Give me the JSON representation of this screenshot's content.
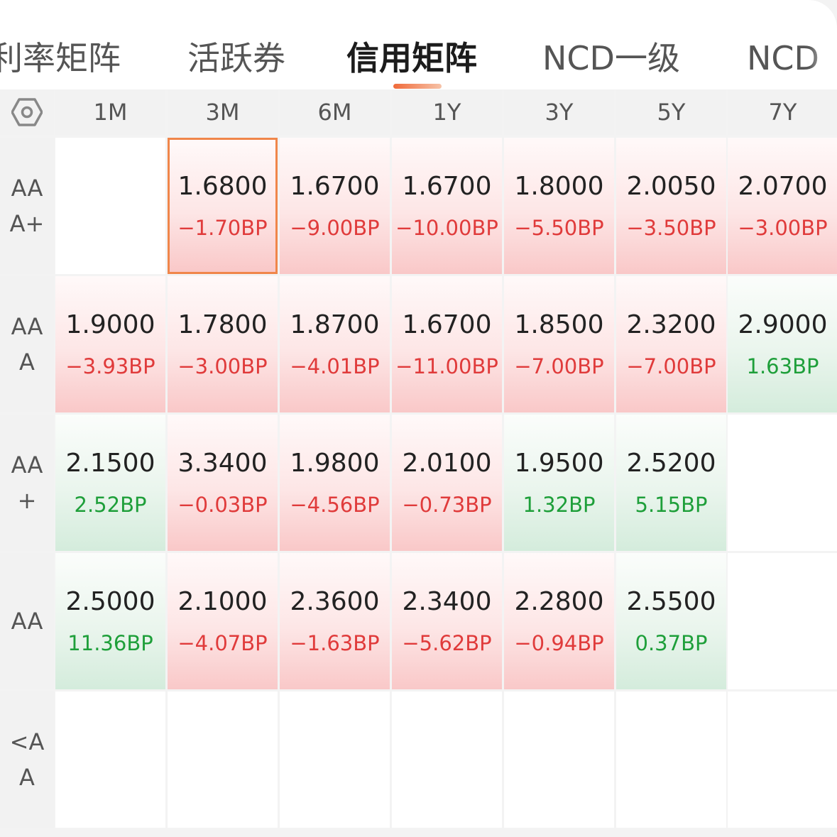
{
  "tabs": [
    {
      "label": "利率矩阵",
      "active": false
    },
    {
      "label": "活跃券",
      "active": false
    },
    {
      "label": "信用矩阵",
      "active": true
    },
    {
      "label": "NCD一级",
      "active": false
    },
    {
      "label": "NCD",
      "active": false
    }
  ],
  "columns": [
    "1M",
    "3M",
    "6M",
    "1Y",
    "3Y",
    "5Y",
    "7Y"
  ],
  "settings_icon": "settings-hex-icon",
  "colors": {
    "negative": "#e03b3b",
    "positive": "#1e9f3a",
    "selected_border": "#f0864a",
    "accent": "#f06a3a"
  },
  "rows": [
    {
      "label_lines": [
        "AA",
        "A+"
      ],
      "cells": [
        null,
        {
          "value": "1.6800",
          "change": "−1.70BP",
          "trend": "red",
          "selected": true
        },
        {
          "value": "1.6700",
          "change": "−9.00BP",
          "trend": "red"
        },
        {
          "value": "1.6700",
          "change": "−10.00BP",
          "trend": "red"
        },
        {
          "value": "1.8000",
          "change": "−5.50BP",
          "trend": "red"
        },
        {
          "value": "2.0050",
          "change": "−3.50BP",
          "trend": "red"
        },
        {
          "value": "2.0700",
          "change": "−3.00BP",
          "trend": "red"
        }
      ]
    },
    {
      "label_lines": [
        "AA",
        "A"
      ],
      "cells": [
        {
          "value": "1.9000",
          "change": "−3.93BP",
          "trend": "red"
        },
        {
          "value": "1.7800",
          "change": "−3.00BP",
          "trend": "red"
        },
        {
          "value": "1.8700",
          "change": "−4.01BP",
          "trend": "red"
        },
        {
          "value": "1.6700",
          "change": "−11.00BP",
          "trend": "red"
        },
        {
          "value": "1.8500",
          "change": "−7.00BP",
          "trend": "red"
        },
        {
          "value": "2.3200",
          "change": "−7.00BP",
          "trend": "red"
        },
        {
          "value": "2.9000",
          "change": "1.63BP",
          "trend": "green"
        }
      ]
    },
    {
      "label_lines": [
        "AA",
        "+"
      ],
      "cells": [
        {
          "value": "2.1500",
          "change": "2.52BP",
          "trend": "green"
        },
        {
          "value": "3.3400",
          "change": "−0.03BP",
          "trend": "red"
        },
        {
          "value": "1.9800",
          "change": "−4.56BP",
          "trend": "red"
        },
        {
          "value": "2.0100",
          "change": "−0.73BP",
          "trend": "red"
        },
        {
          "value": "1.9500",
          "change": "1.32BP",
          "trend": "green"
        },
        {
          "value": "2.5200",
          "change": "5.15BP",
          "trend": "green"
        },
        null
      ]
    },
    {
      "label_lines": [
        "AA"
      ],
      "cells": [
        {
          "value": "2.5000",
          "change": "11.36BP",
          "trend": "green"
        },
        {
          "value": "2.1000",
          "change": "−4.07BP",
          "trend": "red"
        },
        {
          "value": "2.3600",
          "change": "−1.63BP",
          "trend": "red"
        },
        {
          "value": "2.3400",
          "change": "−5.62BP",
          "trend": "red"
        },
        {
          "value": "2.2800",
          "change": "−0.94BP",
          "trend": "red"
        },
        {
          "value": "2.5500",
          "change": "0.37BP",
          "trend": "green"
        },
        null
      ]
    },
    {
      "label_lines": [
        "<A",
        "A"
      ],
      "cells": [
        null,
        null,
        null,
        null,
        null,
        null,
        null
      ]
    }
  ]
}
